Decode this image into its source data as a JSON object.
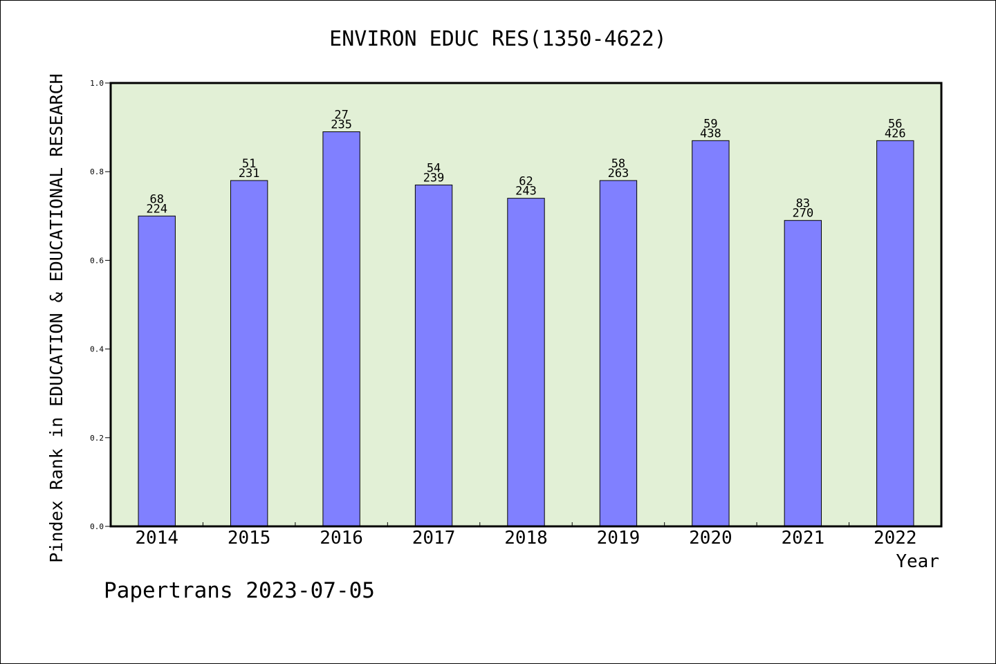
{
  "chart_data": {
    "type": "bar",
    "title": "ENVIRON EDUC RES(1350-4622)",
    "xlabel": "Year",
    "ylabel": "Pindex Rank in EDUCATION & EDUCATIONAL RESEARCH",
    "ylim": [
      0,
      1.0
    ],
    "yticks": [
      "0.0",
      "0.2",
      "0.4",
      "0.6",
      "0.8",
      "1.0"
    ],
    "categories": [
      "2014",
      "2015",
      "2016",
      "2017",
      "2018",
      "2019",
      "2020",
      "2021",
      "2022"
    ],
    "values": [
      0.7,
      0.78,
      0.89,
      0.77,
      0.74,
      0.78,
      0.87,
      0.69,
      0.87
    ],
    "rank_labels": [
      "68",
      "51",
      "27",
      "54",
      "62",
      "58",
      "59",
      "83",
      "56"
    ],
    "total_labels": [
      "224",
      "231",
      "235",
      "239",
      "243",
      "263",
      "438",
      "270",
      "426"
    ],
    "plot_background": "#e2f0d6",
    "bar_color": "#8080ff",
    "grid": false
  },
  "footer": {
    "credit": "Papertrans 2023-07-05"
  }
}
